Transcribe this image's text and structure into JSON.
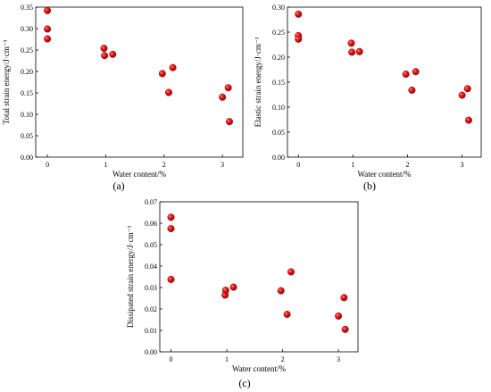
{
  "chart_data": [
    {
      "type": "scatter",
      "panel_label": "(a)",
      "xlabel": "Water content/%",
      "ylabel": "Total strain energy/J·cm⁻³",
      "xlim": [
        -0.2,
        3.35
      ],
      "ylim": [
        0,
        0.35
      ],
      "xticks": [
        0,
        1,
        2,
        3
      ],
      "yticks": [
        0.0,
        0.05,
        0.1,
        0.15,
        0.2,
        0.25,
        0.3,
        0.35
      ],
      "ytick_labels": [
        "0.00",
        "0.05",
        "0.10",
        "0.15",
        "0.20",
        "0.25",
        "0.30",
        "0.35"
      ],
      "grid": false,
      "x": [
        0,
        0,
        0,
        0.97,
        0.98,
        1.12,
        1.97,
        2.08,
        2.15,
        3.0,
        3.1,
        3.12
      ],
      "y": [
        0.342,
        0.299,
        0.276,
        0.254,
        0.237,
        0.24,
        0.195,
        0.151,
        0.209,
        0.14,
        0.162,
        0.083
      ],
      "color": "#dd1111"
    },
    {
      "type": "scatter",
      "panel_label": "(b)",
      "xlabel": "Water content/%",
      "ylabel": "Elastic strain energy/J·cm⁻³",
      "xlim": [
        -0.2,
        3.35
      ],
      "ylim": [
        0,
        0.3
      ],
      "xticks": [
        0,
        1,
        2,
        3
      ],
      "yticks": [
        0.0,
        0.05,
        0.1,
        0.15,
        0.2,
        0.25,
        0.3
      ],
      "ytick_labels": [
        "0.00",
        "0.05",
        "0.10",
        "0.15",
        "0.20",
        "0.25",
        "0.30"
      ],
      "grid": false,
      "x": [
        0,
        0,
        0,
        0.97,
        0.98,
        1.12,
        1.97,
        2.08,
        2.15,
        3.0,
        3.1,
        3.12
      ],
      "y": [
        0.286,
        0.243,
        0.236,
        0.228,
        0.21,
        0.211,
        0.166,
        0.134,
        0.171,
        0.124,
        0.137,
        0.074
      ],
      "color": "#dd1111"
    },
    {
      "type": "scatter",
      "panel_label": "(c)",
      "xlabel": "Water content/%",
      "ylabel": "Dissipated strain energy/J·cm⁻³",
      "xlim": [
        -0.2,
        3.35
      ],
      "ylim": [
        0,
        0.07
      ],
      "xticks": [
        0,
        1,
        2,
        3
      ],
      "yticks": [
        0.0,
        0.01,
        0.02,
        0.03,
        0.04,
        0.05,
        0.06,
        0.07
      ],
      "ytick_labels": [
        "0.00",
        "0.01",
        "0.02",
        "0.03",
        "0.04",
        "0.05",
        "0.06",
        "0.07"
      ],
      "grid": false,
      "x": [
        0,
        0,
        0,
        0.97,
        0.98,
        1.12,
        1.97,
        2.08,
        2.15,
        3.0,
        3.1,
        3.12
      ],
      "y": [
        0.0628,
        0.0575,
        0.0338,
        0.0265,
        0.0287,
        0.0302,
        0.0285,
        0.0175,
        0.0373,
        0.0167,
        0.0253,
        0.0105
      ],
      "color": "#dd1111"
    }
  ]
}
